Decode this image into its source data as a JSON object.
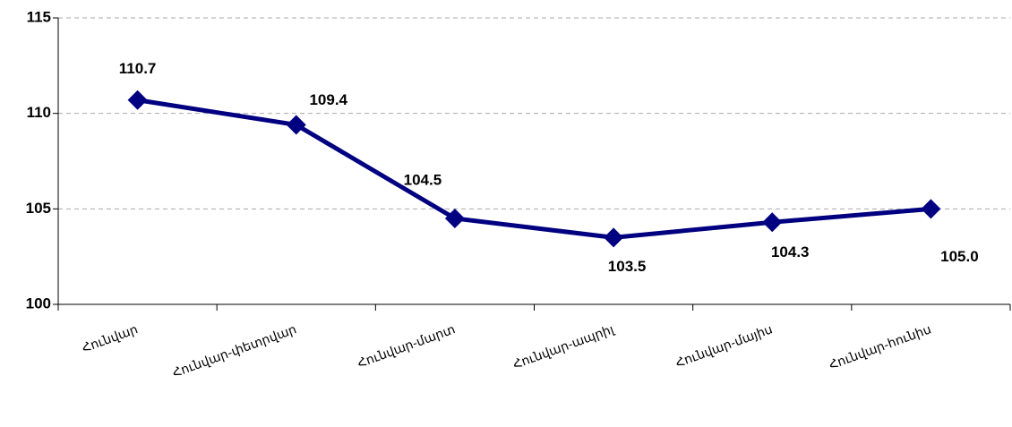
{
  "chart_data": {
    "type": "line",
    "categories": [
      "Հունվար",
      "Հունվար-փետրվար",
      "Հունվար-մարտ",
      "Հունվար-ապրիլ",
      "Հունվար-մայիս",
      "Հունվար-հունիս"
    ],
    "series": [
      {
        "name": "Հունվար-հունիս",
        "color": "#000080",
        "values": [
          110.7,
          109.4,
          104.5,
          103.5,
          104.3,
          105.0
        ],
        "value_labels": [
          "110.7",
          "109.4",
          "104.5",
          "103.5",
          "104.3",
          "105.0"
        ]
      }
    ],
    "ylim": [
      100,
      115
    ],
    "yticks": [
      100,
      105,
      110,
      115
    ],
    "grid": true
  }
}
